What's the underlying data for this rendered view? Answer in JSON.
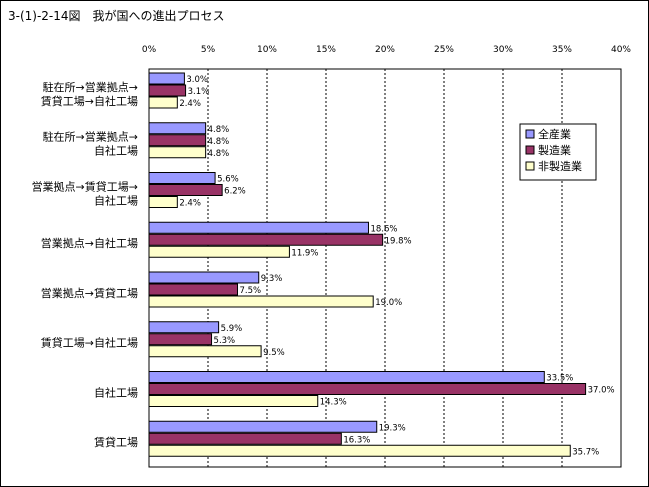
{
  "figure_title": "3-(1)-2-14図　我が国への進出プロセス",
  "colors": {
    "series": [
      "#9999ff",
      "#993366",
      "#ffffcc"
    ],
    "border": "#000000",
    "grid": "#000000"
  },
  "chart_data": {
    "type": "bar",
    "orientation": "horizontal",
    "title": "",
    "xlabel": "",
    "ylabel": "",
    "xlim": [
      0,
      40
    ],
    "x_ticks": [
      0,
      5,
      10,
      15,
      20,
      25,
      30,
      35,
      40
    ],
    "x_tick_labels": [
      "0%",
      "5%",
      "10%",
      "15%",
      "20%",
      "25%",
      "30%",
      "35%",
      "40%"
    ],
    "grid": "vertical dashed",
    "legend_position": "right",
    "categories": [
      [
        "駐在所→営業拠点→",
        "賃貸工場→自社工場"
      ],
      [
        "駐在所→営業拠点→",
        "自社工場"
      ],
      [
        "営業拠点→賃貸工場→",
        "自社工場"
      ],
      [
        "営業拠点→自社工場"
      ],
      [
        "営業拠点→賃貸工場"
      ],
      [
        "賃貸工場→自社工場"
      ],
      [
        "自社工場"
      ],
      [
        "賃貸工場"
      ]
    ],
    "series": [
      {
        "name": "全産業",
        "values": [
          3.0,
          4.8,
          5.6,
          18.6,
          9.3,
          5.9,
          33.5,
          19.3
        ],
        "labels": [
          "3.0%",
          "4.8%",
          "5.6%",
          "18.6%",
          "9.3%",
          "5.9%",
          "33.5%",
          "19.3%"
        ]
      },
      {
        "name": "製造業",
        "values": [
          3.1,
          4.8,
          6.2,
          19.8,
          7.5,
          5.3,
          37.0,
          16.3
        ],
        "labels": [
          "3.1%",
          "4.8%",
          "6.2%",
          "19.8%",
          "7.5%",
          "5.3%",
          "37.0%",
          "16.3%"
        ]
      },
      {
        "name": "非製造業",
        "values": [
          2.4,
          4.8,
          2.4,
          11.9,
          19.0,
          9.5,
          14.3,
          35.7
        ],
        "labels": [
          "2.4%",
          "4.8%",
          "2.4%",
          "11.9%",
          "19.0%",
          "9.5%",
          "14.3%",
          "35.7%"
        ]
      }
    ]
  }
}
